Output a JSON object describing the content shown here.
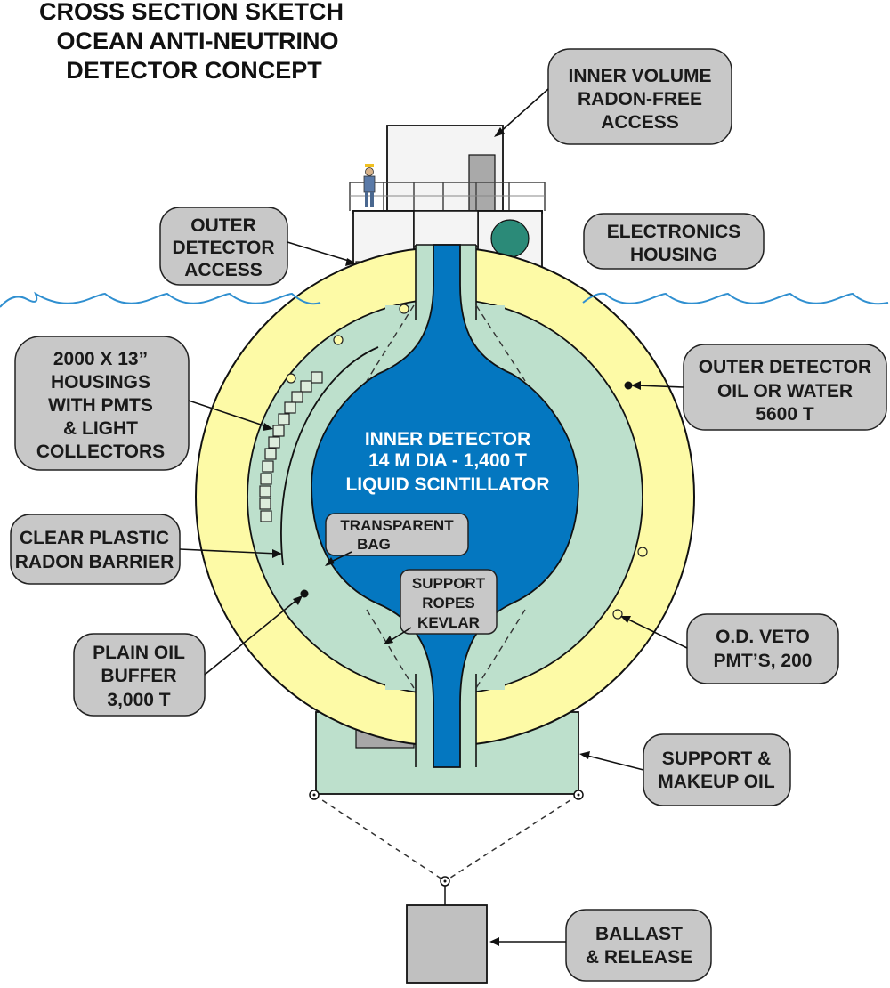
{
  "title": [
    "CROSS SECTION SKETCH",
    "OCEAN ANTI-NEUTRINO",
    "DETECTOR CONCEPT"
  ],
  "labels": {
    "inner_volume": [
      "INNER VOLUME",
      "RADON-FREE",
      "ACCESS"
    ],
    "outer_access": [
      "OUTER",
      "DETECTOR",
      "ACCESS"
    ],
    "electronics": [
      "ELECTRONICS",
      "HOUSING"
    ],
    "housings": [
      "2000 X 13”",
      "HOUSINGS",
      "WITH PMTS",
      "& LIGHT",
      "COLLECTORS"
    ],
    "outer_oil": [
      "OUTER DETECTOR",
      "OIL OR WATER",
      "5600 T"
    ],
    "barrier": [
      "CLEAR PLASTIC",
      "RADON BARRIER"
    ],
    "plain_oil": [
      "PLAIN OIL",
      "BUFFER",
      "3,000 T"
    ],
    "veto": [
      "O.D. VETO",
      "PMT’S, 200"
    ],
    "support_oil": [
      "SUPPORT &",
      "MAKEUP OIL"
    ],
    "ballast": [
      "BALLAST",
      "& RELEASE"
    ],
    "bag": [
      "TRANSPARENT",
      "BAG"
    ],
    "ropes": [
      "SUPPORT",
      "ROPES",
      "KEVLAR"
    ],
    "inner_detector": [
      "INNER DETECTOR",
      "14 M DIA - 1,400 T",
      "LIQUID SCINTILLATOR"
    ]
  },
  "colors": {
    "yellow": "#fdfaa6",
    "green": "#bde0cc",
    "blue": "#0477c0",
    "gray_box": "#c8c8c8",
    "sea": "#2f8fd0",
    "teal": "#2b8a78"
  }
}
